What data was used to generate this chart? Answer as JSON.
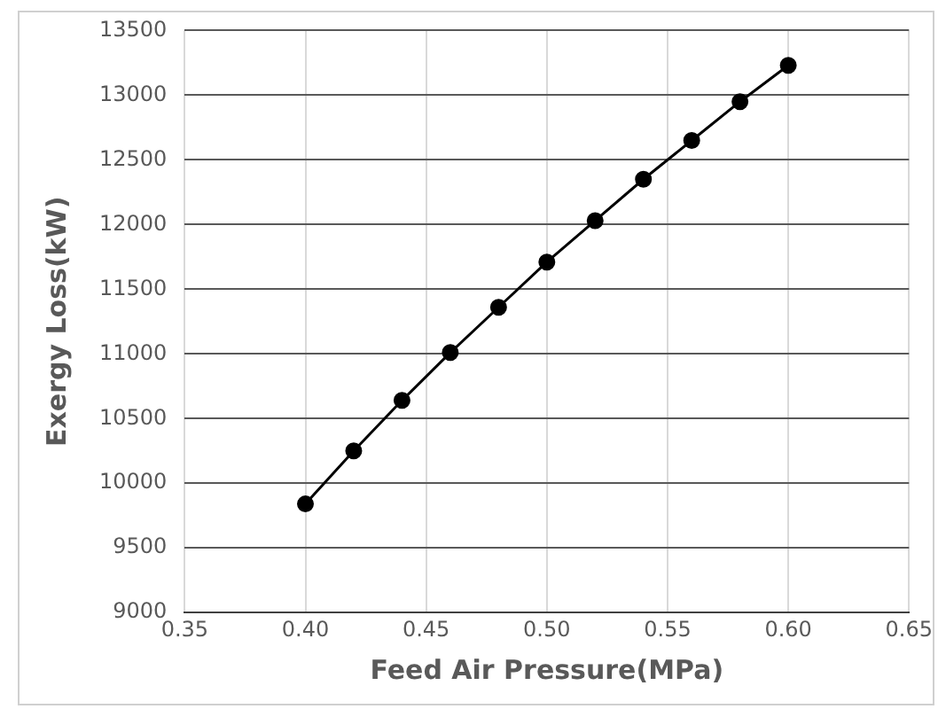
{
  "chart_data": {
    "type": "line",
    "xlabel": "Feed Air Pressure(MPa)",
    "ylabel": "Exergy Loss(kW)",
    "x": [
      0.4,
      0.42,
      0.44,
      0.46,
      0.48,
      0.5,
      0.52,
      0.54,
      0.56,
      0.58,
      0.6
    ],
    "series": [
      {
        "color": "#000000",
        "values": [
          9840,
          10250,
          10640,
          11010,
          11360,
          11710,
          12030,
          12350,
          12650,
          12950,
          13230
        ]
      }
    ],
    "xlim": [
      0.35,
      0.65
    ],
    "xticks": [
      {
        "value": 0.35,
        "label": "0.35"
      },
      {
        "value": 0.4,
        "label": "0.40"
      },
      {
        "value": 0.45,
        "label": "0.45"
      },
      {
        "value": 0.5,
        "label": "0.50"
      },
      {
        "value": 0.55,
        "label": "0.55"
      },
      {
        "value": 0.6,
        "label": "0.60"
      },
      {
        "value": 0.65,
        "label": "0.65"
      }
    ],
    "ylim": [
      9000,
      13500
    ],
    "yticks": [
      9000,
      9500,
      10000,
      10500,
      11000,
      11500,
      12000,
      12500,
      13000,
      13500
    ],
    "grid": true,
    "legend": false,
    "marker": "circle",
    "line_style": "solid"
  }
}
